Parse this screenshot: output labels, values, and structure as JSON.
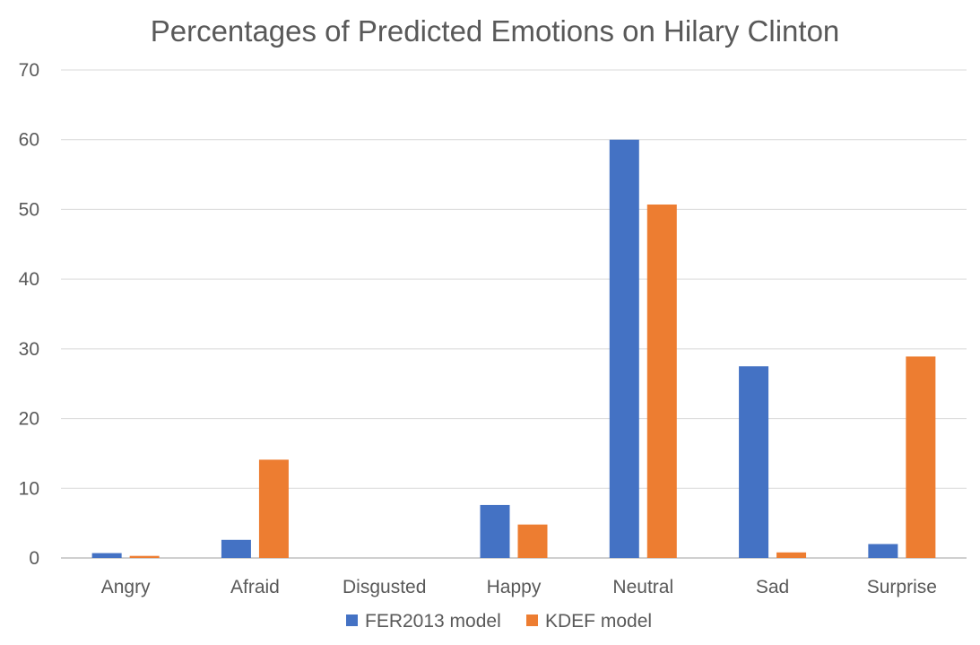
{
  "chart_data": {
    "type": "bar",
    "title": "Percentages of  Predicted Emotions on Hilary Clinton",
    "xlabel": "",
    "ylabel": "",
    "categories": [
      "Angry",
      "Afraid",
      "Disgusted",
      "Happy",
      "Neutral",
      "Sad",
      "Surprise"
    ],
    "series": [
      {
        "name": "FER2013 model",
        "color": "#4472c4",
        "values": [
          0.7,
          2.6,
          0,
          7.6,
          60,
          27.5,
          2.0
        ]
      },
      {
        "name": "KDEF model",
        "color": "#ed7d31",
        "values": [
          0.3,
          14.1,
          0,
          4.8,
          50.7,
          0.8,
          28.9
        ]
      }
    ],
    "ylim": [
      0,
      70
    ],
    "yticks": [
      0,
      10,
      20,
      30,
      40,
      50,
      60,
      70
    ],
    "grid": true,
    "legend_position": "bottom"
  }
}
